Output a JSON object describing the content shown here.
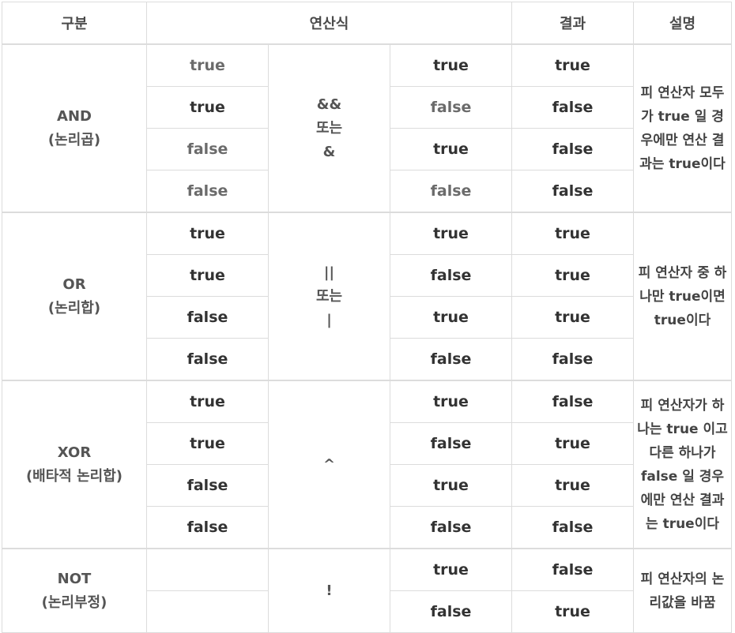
{
  "header": {
    "category": "구분",
    "expression": "연산식",
    "result": "결과",
    "description": "설명"
  },
  "groups": [
    {
      "name": "AND",
      "name_sub": "(논리곱)",
      "operator_lines": [
        "&&",
        "또는",
        "&"
      ],
      "description": "피 연산자 모두가 true 일 경우에만 연산 결과는 true이다",
      "rows": [
        {
          "left": "true",
          "right": "true",
          "result": "true"
        },
        {
          "left": "true",
          "right": "false",
          "result": "false"
        },
        {
          "left": "false",
          "right": "true",
          "result": "false"
        },
        {
          "left": "false",
          "right": "false",
          "result": "false"
        }
      ]
    },
    {
      "name": "OR",
      "name_sub": "(논리합)",
      "operator_lines": [
        "||",
        "또는",
        "|"
      ],
      "description": "피 연산자 중 하나만 true이면 true이다",
      "rows": [
        {
          "left": "true",
          "right": "true",
          "result": "true"
        },
        {
          "left": "true",
          "right": "false",
          "result": "true"
        },
        {
          "left": "false",
          "right": "true",
          "result": "true"
        },
        {
          "left": "false",
          "right": "false",
          "result": "false"
        }
      ]
    },
    {
      "name": "XOR",
      "name_sub": "(배타적 논리합)",
      "operator_lines": [
        "^"
      ],
      "description": "피 연산자가 하나는 true 이고 다른 하나가 false 일 경우에만 연산 결과는 true이다",
      "rows": [
        {
          "left": "true",
          "right": "true",
          "result": "false"
        },
        {
          "left": "true",
          "right": "false",
          "result": "true"
        },
        {
          "left": "false",
          "right": "true",
          "result": "true"
        },
        {
          "left": "false",
          "right": "false",
          "result": "false"
        }
      ]
    },
    {
      "name": "NOT",
      "name_sub": "(논리부정)",
      "operator_lines": [
        "!"
      ],
      "description": "피 연산자의 논리값을 바꿈",
      "rows": [
        {
          "left": "",
          "right": "true",
          "result": "false"
        },
        {
          "left": "",
          "right": "false",
          "result": "true"
        }
      ]
    }
  ]
}
